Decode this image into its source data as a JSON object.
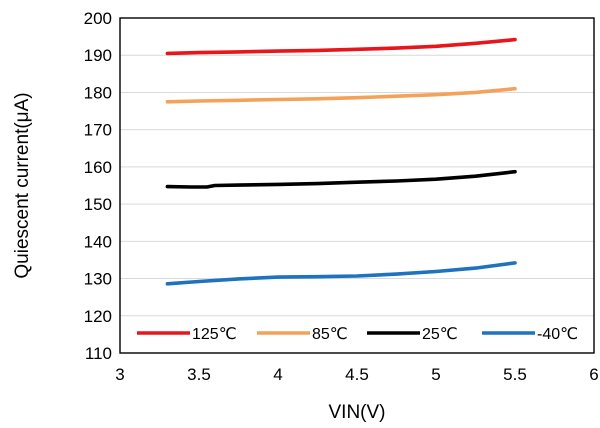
{
  "chart_data": {
    "type": "line",
    "xlabel": "VIN(V)",
    "ylabel": "Quiescent current(μA)",
    "xlim": [
      3,
      6
    ],
    "ylim": [
      110,
      200
    ],
    "xticks": [
      3,
      3.5,
      4,
      4.5,
      5,
      5.5,
      6
    ],
    "xtick_labels": [
      "3",
      "3.5",
      "4",
      "4.5",
      "5",
      "5.5",
      "6"
    ],
    "yticks": [
      110,
      120,
      130,
      140,
      150,
      160,
      170,
      180,
      190,
      200
    ],
    "ytick_labels": [
      "110",
      "120",
      "130",
      "140",
      "150",
      "160",
      "170",
      "180",
      "190",
      "200"
    ],
    "grid": true,
    "legend_position": "bottom-inside",
    "series": [
      {
        "name": "125℃",
        "color": "#e8151b",
        "x": [
          3.3,
          3.5,
          3.75,
          4.0,
          4.25,
          4.5,
          4.75,
          5.0,
          5.25,
          5.5
        ],
        "y": [
          190.5,
          190.7,
          190.9,
          191.1,
          191.3,
          191.6,
          191.9,
          192.4,
          193.2,
          194.2
        ]
      },
      {
        "name": "85℃",
        "color": "#f4a25a",
        "x": [
          3.3,
          3.5,
          3.75,
          4.0,
          4.25,
          4.5,
          4.75,
          5.0,
          5.25,
          5.5
        ],
        "y": [
          177.5,
          177.7,
          177.9,
          178.1,
          178.3,
          178.6,
          179.0,
          179.4,
          180.0,
          181.0
        ]
      },
      {
        "name": "25℃",
        "color": "#000000",
        "x": [
          3.3,
          3.45,
          3.55,
          3.6,
          3.75,
          4.0,
          4.25,
          4.5,
          4.75,
          5.0,
          5.25,
          5.5
        ],
        "y": [
          154.7,
          154.6,
          154.6,
          155.0,
          155.1,
          155.3,
          155.5,
          155.9,
          156.2,
          156.7,
          157.5,
          158.7
        ]
      },
      {
        "name": "-40℃",
        "color": "#1e73be",
        "x": [
          3.3,
          3.5,
          3.75,
          4.0,
          4.25,
          4.5,
          4.75,
          5.0,
          5.25,
          5.5
        ],
        "y": [
          128.6,
          129.2,
          129.9,
          130.4,
          130.5,
          130.7,
          131.2,
          131.9,
          132.8,
          134.2
        ]
      }
    ]
  }
}
